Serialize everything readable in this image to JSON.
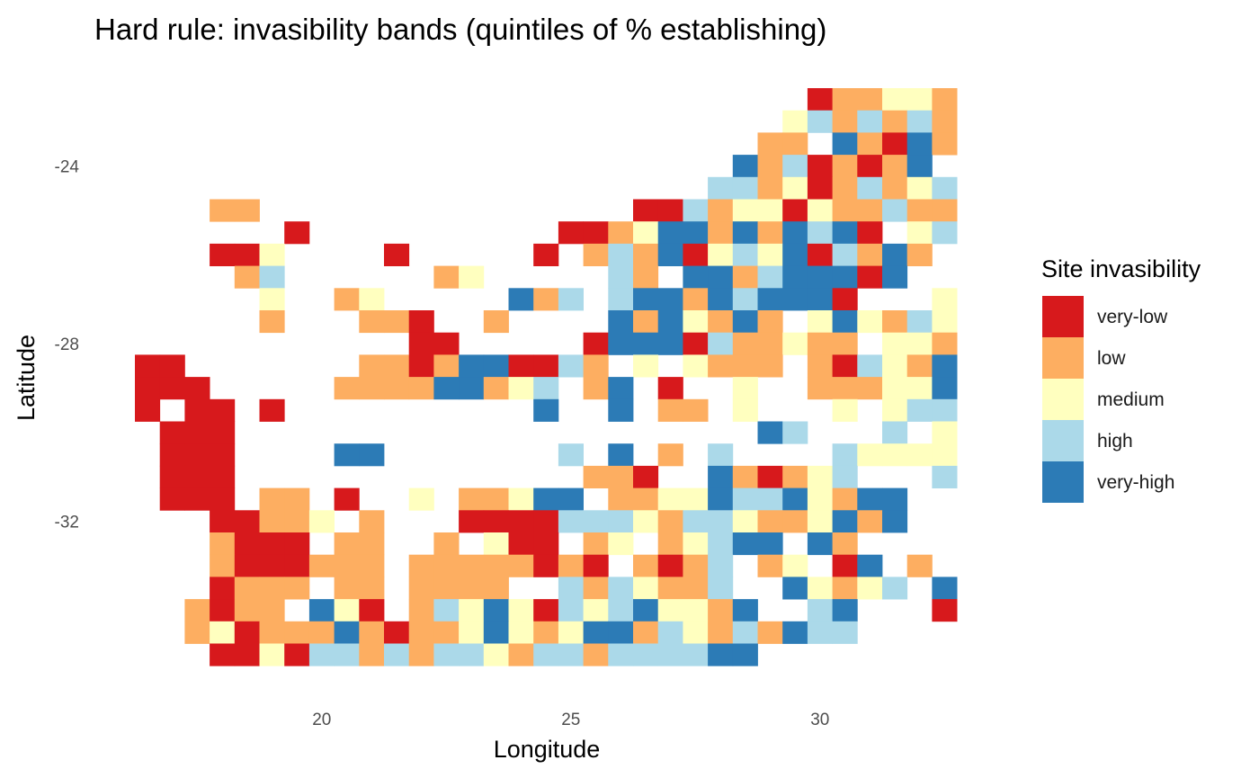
{
  "chart_data": {
    "type": "heatmap",
    "title": "Hard rule: invasibility bands (quintiles of % establishing)",
    "xlabel": "Longitude",
    "ylabel": "Latitude",
    "x_ticks": [
      20,
      25,
      30
    ],
    "y_ticks": [
      -24,
      -28,
      -32
    ],
    "x_range": [
      15.75,
      33.25
    ],
    "y_range": [
      -34.75,
      -22.25
    ],
    "cell_size": 0.5,
    "grid": false,
    "legend": {
      "title": "Site invasibility",
      "position": "right",
      "levels": [
        "very-low",
        "low",
        "medium",
        "high",
        "very-high"
      ],
      "colors": [
        "#d7191c",
        "#fdae61",
        "#ffffbf",
        "#abd9e9",
        "#2c7bb6"
      ]
    },
    "lon_start": 16.5,
    "lat_top": -22.5,
    "rows": [
      "...........................0LLMMLL..........",
      "..........................MHLHLHL............",
      ".........................LL.VL0VLL...........",
      "........................VLH0L0LV.HH..........",
      ".......................HHLM0LHLMHH...........",
      "...LL...............00HLMM0MLLHLLM...........",
      "......0..........00LMVVLVLVHV0.MH............",
      "...00M....0.....0.LHLV0MHMV0HLVL.............",
      "....LH......LM.....HL.VVLHVVV0V..............",
      ".....M..LM.....VLH.HVVLVHVVV0...MH...........",
      ".....L...LL0..L....VLVMLVL.MVMLHMLL..........",
      "...........00.....0VVV0HLLMLL.MMLL...........",
      "00.......LL0LVV00HL.M.MLLL.L0HMLVVLV.........",
      "000.....LLLLVVLMH.LV.0..M..LLLMMVVHM.........",
      "0.00.0..........V..V.LL.M...M.MHHVV..........",
      ".000.....................VH...H.MMMV.........",
      ".000....VV.......H.V.L.H....HMMMMV...........",
      ".000..............LL0..VL0LMH...H.HLV.........",
      ".000.LL.0..M.LLMVV.LLMMVHHVMLVV..............",
      "...00LLM.L...0000HHHMLHHMLLMVLV..............",
      "...L000.LL..L.M00.LM.LMHVV.VL..............."
    ]
  },
  "extra_rows": [
    "...L000LLL.LLLLL0L0.L0LH.LM.0V.L.............",
    "...0LLL.LL.LLLL..HLHMLLH..VMLMH.V............",
    "..L0LL.VM0.LHMVM0HMHVMMLV..HV...0............",
    "..LM0LLLVL0LLMVMLMVVLHMLHLVHH.................",
    "...00M0HHLHLHHMLHHLHHHHVV.......................",
    "...MLLLLLVHMMMMHMMVVMVHH........................",
    "......HMM......................................."
  ]
}
